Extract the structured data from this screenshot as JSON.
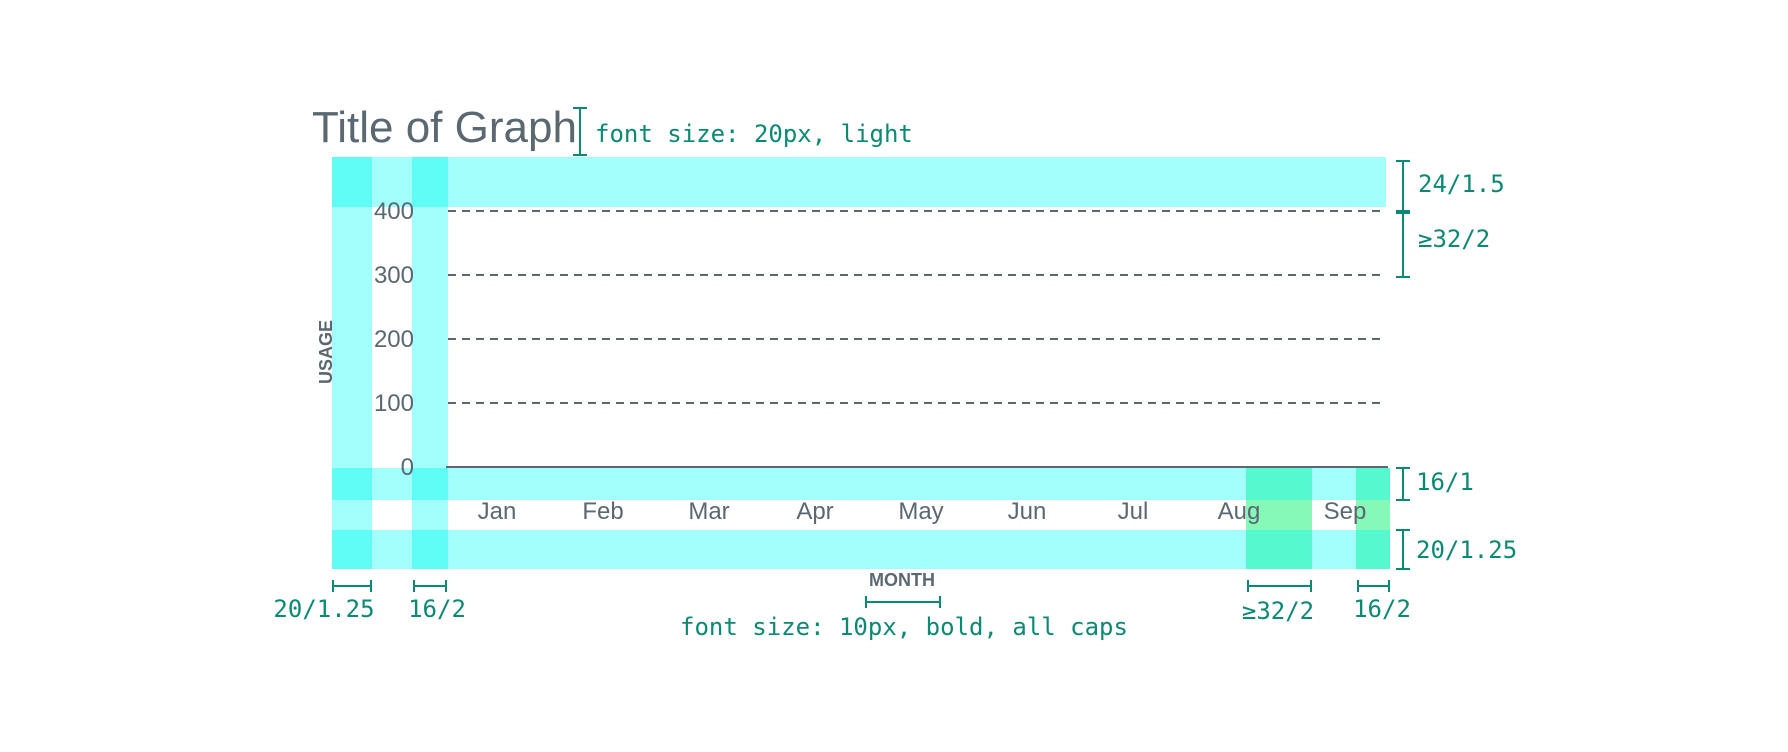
{
  "title": "Title of Graph",
  "y_axis_label": "USAGE",
  "x_axis_label": "MONTH",
  "chart_data": {
    "type": "line",
    "categories": [
      "Jan",
      "Feb",
      "Mar",
      "Apr",
      "May",
      "Jun",
      "Jul",
      "Aug",
      "Sep"
    ],
    "y_ticks": [
      400,
      300,
      200,
      100,
      0
    ],
    "ylim": [
      0,
      400
    ],
    "grid": true
  },
  "annotations": {
    "title_font": "font size: 20px, light",
    "top_padding": "24/1.5",
    "grid_spacing": "≥32/2",
    "x_tick_gap": "16/1",
    "x_label_gap": "20/1.25",
    "left_label_gap": "20/1.25",
    "left_tick_gap": "16/2",
    "label_font": "font size: 10px, bold, all caps",
    "right_gap": "≥32/2",
    "right_end_gap": "16/2"
  },
  "colors": {
    "band": "#a3fffb",
    "band_overlap": "#5ffdf6",
    "green_band": "#56f8cf",
    "green_overlap": "#86f8b8",
    "annotation": "#0b8a73",
    "text": "#5a6872",
    "gridline": "#5a6872"
  }
}
